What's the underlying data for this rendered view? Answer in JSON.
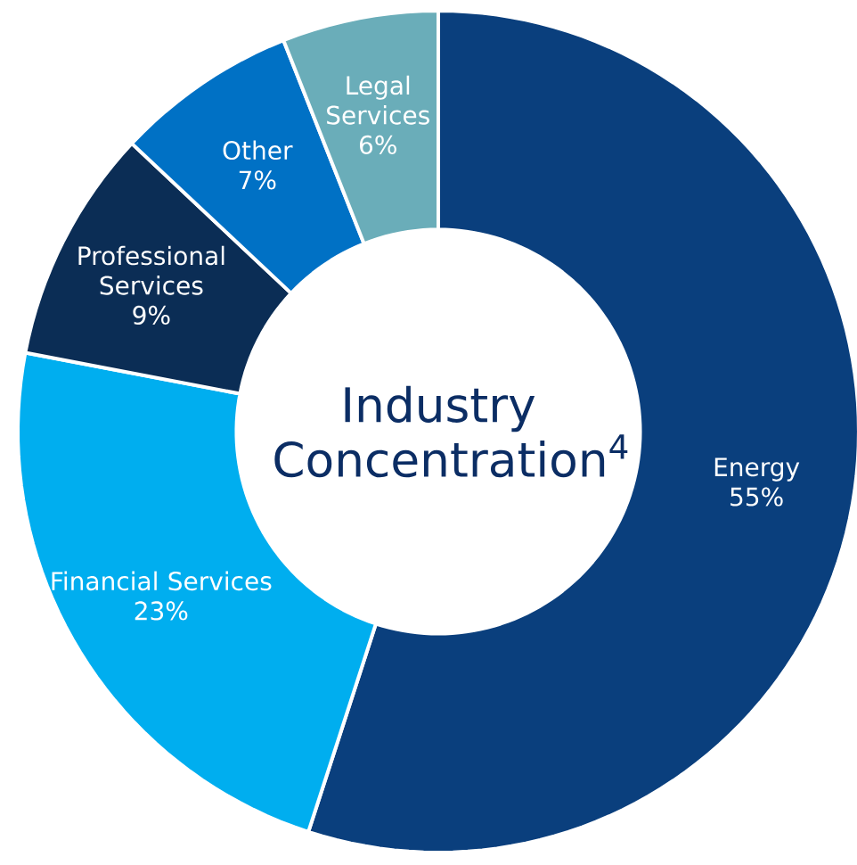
{
  "chart_data": {
    "type": "donut",
    "title": "Industry Concentration$^{4}$",
    "categories": [
      "Energy",
      "Financial Services",
      "Professional Services",
      "Other",
      "Legal Services"
    ],
    "values": [
      55,
      23,
      9,
      7,
      6
    ],
    "value_labels": [
      "55%",
      "23%",
      "9%",
      "7%",
      "6%"
    ],
    "colors": [
      "#0a3f7d",
      "#00aeef",
      "#0b2d55",
      "#0071c5",
      "#6aadb9"
    ]
  }
}
